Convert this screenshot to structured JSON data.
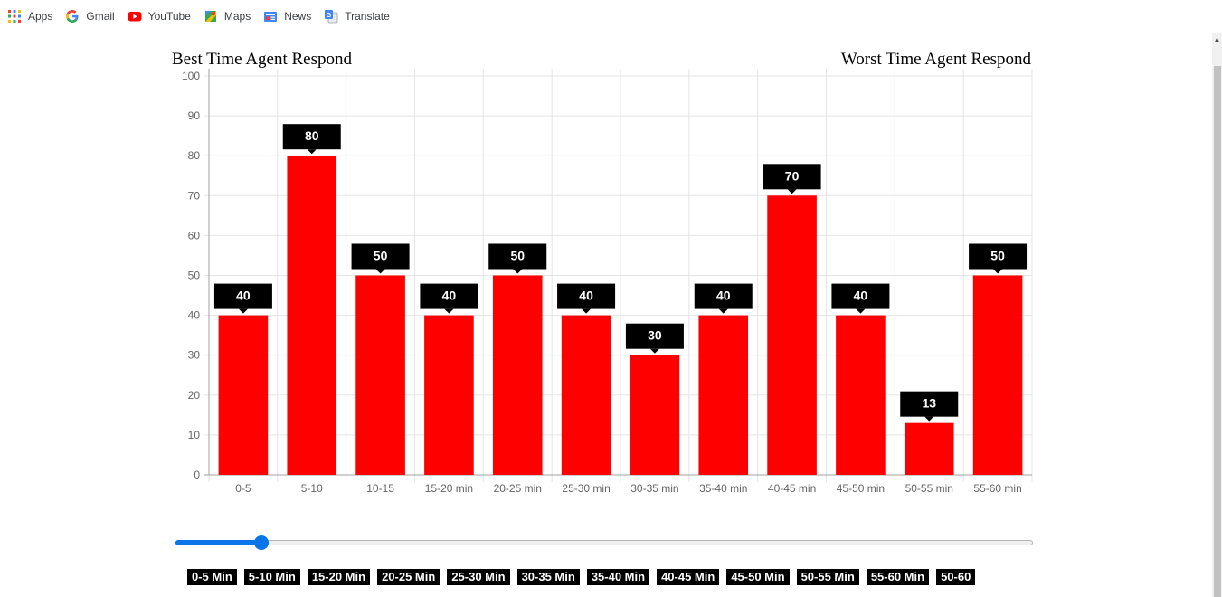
{
  "bookmarks": [
    {
      "label": "Apps",
      "icon": "apps-grid-icon"
    },
    {
      "label": "Gmail",
      "icon": "google-g-icon"
    },
    {
      "label": "YouTube",
      "icon": "youtube-icon"
    },
    {
      "label": "Maps",
      "icon": "maps-icon"
    },
    {
      "label": "News",
      "icon": "news-icon"
    },
    {
      "label": "Translate",
      "icon": "translate-icon"
    }
  ],
  "headers": {
    "left": "Best Time Agent Respond",
    "right": "Worst Time Agent Respond"
  },
  "chart_data": {
    "type": "bar",
    "categories": [
      "0-5",
      "5-10",
      "10-15",
      "15-20 min",
      "20-25 min",
      "25-30 min",
      "30-35 min",
      "35-40 min",
      "40-45 min",
      "45-50 min",
      "50-55 min",
      "55-60 min"
    ],
    "values": [
      40,
      80,
      50,
      40,
      50,
      40,
      30,
      40,
      70,
      40,
      13,
      50
    ],
    "ylim": [
      0,
      100
    ],
    "yticks": [
      0,
      10,
      20,
      30,
      40,
      50,
      60,
      70,
      80,
      90,
      100
    ],
    "grid": true,
    "bar_color": "#ff0000",
    "label_bg": "#000000"
  },
  "slider": {
    "value": 0.1
  },
  "range_labels": [
    "0-5 Min",
    "5-10 Min",
    "15-20 Min",
    "20-25 Min",
    "25-30 Min",
    "30-35 Min",
    "35-40 Min",
    "40-45 Min",
    "45-50 Min",
    "50-55 Min",
    "55-60 Min",
    "50-60"
  ]
}
